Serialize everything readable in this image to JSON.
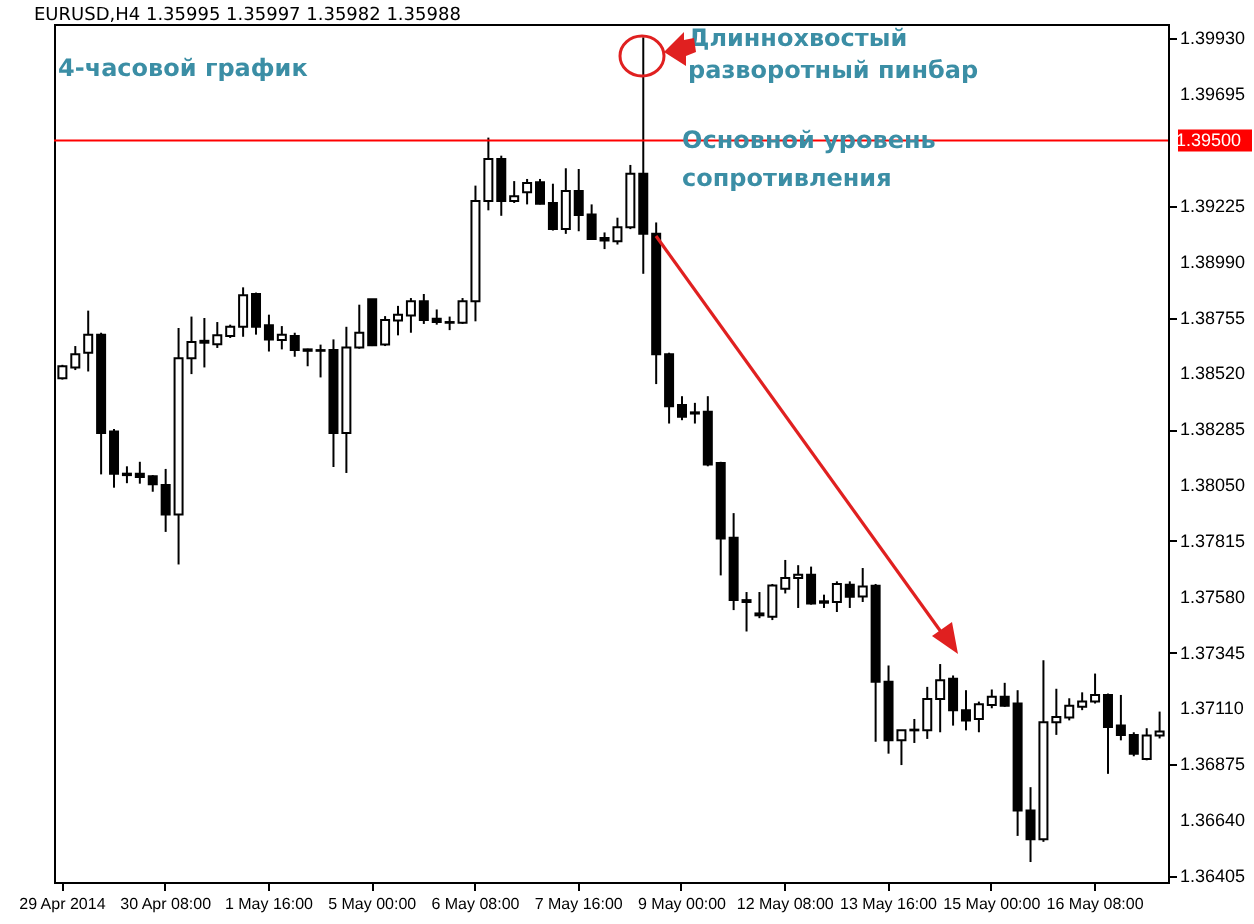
{
  "chart_data": {
    "type": "candlestick",
    "title": "EURUSD,H4  1.35995 1.35997 1.35982 1.35988",
    "subtitle": "4-часовой график",
    "annotations": [
      "Длиннохвостый разворотный пинбар",
      {
        "text": "Основной уровень сопротивления",
        "y": 1.395
      }
    ],
    "categories": [
      "29 Apr 2014",
      null,
      null,
      null,
      null,
      null,
      null,
      null,
      "30 Apr 08:00",
      null,
      null,
      null,
      null,
      null,
      null,
      null,
      "1 May 16:00",
      null,
      null,
      null,
      null,
      null,
      null,
      null,
      "5 May 00:00",
      null,
      null,
      null,
      null,
      null,
      null,
      null,
      "6 May 08:00",
      null,
      null,
      null,
      null,
      null,
      null,
      null,
      "7 May 16:00",
      null,
      null,
      null,
      null,
      null,
      null,
      null,
      "9 May 00:00",
      null,
      null,
      null,
      null,
      null,
      null,
      null,
      "12 May 08:00",
      null,
      null,
      null,
      null,
      null,
      null,
      null,
      "13 May 16:00",
      null,
      null,
      null,
      null,
      null,
      null,
      null,
      "15 May 00:00",
      null,
      null,
      null,
      null,
      null,
      null,
      null,
      "16 May 08:00",
      null,
      null,
      null,
      null,
      null
    ],
    "ohlc": [
      [
        1.385,
        1.38556,
        1.38494,
        1.3855
      ],
      [
        1.38545,
        1.38635,
        1.38534,
        1.38601
      ],
      [
        1.38607,
        1.38784,
        1.38528,
        1.38683
      ],
      [
        1.38683,
        1.38691,
        1.38095,
        1.38269
      ],
      [
        1.38275,
        1.38286,
        1.38039,
        1.38098
      ],
      [
        1.38098,
        1.38129,
        1.38058,
        1.38092
      ],
      [
        1.38098,
        1.38148,
        1.38056,
        1.38084
      ],
      [
        1.38087,
        1.38092,
        1.38022,
        1.38053
      ],
      [
        1.3805,
        1.38118,
        1.37853,
        1.37926
      ],
      [
        1.37926,
        1.38711,
        1.37716,
        1.38584
      ],
      [
        1.38584,
        1.38759,
        1.38517,
        1.38652
      ],
      [
        1.38649,
        1.38753,
        1.38545,
        1.38657
      ],
      [
        1.38643,
        1.38736,
        1.38627,
        1.3868
      ],
      [
        1.38677,
        1.38725,
        1.38669,
        1.38716
      ],
      [
        1.38716,
        1.38882,
        1.38674,
        1.38849
      ],
      [
        1.38854,
        1.3886,
        1.38683,
        1.38716
      ],
      [
        1.38722,
        1.38767,
        1.38612,
        1.38663
      ],
      [
        1.3866,
        1.38719,
        1.38621,
        1.38683
      ],
      [
        1.38677,
        1.38691,
        1.3859,
        1.38618
      ],
      [
        1.38621,
        1.38624,
        1.3855,
        1.38615
      ],
      [
        1.38618,
        1.38641,
        1.38503,
        1.38615
      ],
      [
        1.38618,
        1.38663,
        1.38126,
        1.38269
      ],
      [
        1.38269,
        1.38716,
        1.38101,
        1.38629
      ],
      [
        1.38629,
        1.38809,
        1.38624,
        1.38691
      ],
      [
        1.38832,
        1.38832,
        1.38635,
        1.38638
      ],
      [
        1.38641,
        1.38761,
        1.38635,
        1.38745
      ],
      [
        1.38742,
        1.38804,
        1.3868,
        1.38767
      ],
      [
        1.38764,
        1.38837,
        1.38691,
        1.38823
      ],
      [
        1.38823,
        1.38854,
        1.38728,
        1.38745
      ],
      [
        1.3875,
        1.38789,
        1.38725,
        1.38736
      ],
      [
        1.38736,
        1.38759,
        1.38702,
        1.38733
      ],
      [
        1.38733,
        1.38837,
        1.38728,
        1.38823
      ],
      [
        1.38823,
        1.3931,
        1.38739,
        1.39245
      ],
      [
        1.39245,
        1.39512,
        1.39206,
        1.39422
      ],
      [
        1.39422,
        1.39436,
        1.39183,
        1.39245
      ],
      [
        1.39245,
        1.39329,
        1.39237,
        1.39265
      ],
      [
        1.39282,
        1.39338,
        1.39231,
        1.39321
      ],
      [
        1.39324,
        1.39338,
        1.39231,
        1.39234
      ],
      [
        1.39237,
        1.39318,
        1.39121,
        1.39127
      ],
      [
        1.39127,
        1.39383,
        1.39107,
        1.39287
      ],
      [
        1.39287,
        1.3938,
        1.39118,
        1.39186
      ],
      [
        1.39189,
        1.39231,
        1.39082,
        1.39085
      ],
      [
        1.3909,
        1.39113,
        1.39043,
        1.39079
      ],
      [
        1.39076,
        1.39175,
        1.39062,
        1.39135
      ],
      [
        1.39135,
        1.39397,
        1.39127,
        1.3936
      ],
      [
        1.3936,
        1.39934,
        1.38939,
        1.39107
      ],
      [
        1.39107,
        1.39155,
        1.38475,
        1.38601
      ],
      [
        1.38601,
        1.38607,
        1.38309,
        1.38382
      ],
      [
        1.38387,
        1.38424,
        1.38323,
        1.38337
      ],
      [
        1.38356,
        1.38396,
        1.38309,
        1.38351
      ],
      [
        1.38359,
        1.38424,
        1.38129,
        1.38137
      ],
      [
        1.38143,
        1.38148,
        1.3767,
        1.37825
      ],
      [
        1.37828,
        1.37932,
        1.37524,
        1.37566
      ],
      [
        1.37566,
        1.376,
        1.37434,
        1.37558
      ],
      [
        1.3751,
        1.376,
        1.3749,
        1.37502
      ],
      [
        1.37496,
        1.37634,
        1.37482,
        1.37628
      ],
      [
        1.37614,
        1.37735,
        1.37594,
        1.37659
      ],
      [
        1.37659,
        1.37713,
        1.37533,
        1.37673
      ],
      [
        1.37673,
        1.37707,
        1.37547,
        1.37552
      ],
      [
        1.37561,
        1.37589,
        1.37533,
        1.37555
      ],
      [
        1.37558,
        1.37645,
        1.37516,
        1.37634
      ],
      [
        1.37631,
        1.37645,
        1.37533,
        1.3758
      ],
      [
        1.37581,
        1.37701,
        1.37558,
        1.37623
      ],
      [
        1.37626,
        1.37634,
        1.3697,
        1.37223
      ],
      [
        1.37223,
        1.37291,
        1.3692,
        1.36976
      ],
      [
        1.36976,
        1.37018,
        1.36872,
        1.37018
      ],
      [
        1.37018,
        1.37066,
        1.36965,
        1.37021
      ],
      [
        1.37018,
        1.37201,
        1.36982,
        1.3715
      ],
      [
        1.3715,
        1.37297,
        1.3701,
        1.37229
      ],
      [
        1.37235,
        1.37249,
        1.37038,
        1.37103
      ],
      [
        1.37103,
        1.37187,
        1.37018,
        1.3706
      ],
      [
        1.37066,
        1.37139,
        1.3701,
        1.37128
      ],
      [
        1.37125,
        1.3719,
        1.37111,
        1.37159
      ],
      [
        1.37159,
        1.37218,
        1.37117,
        1.37122
      ],
      [
        1.37131,
        1.37187,
        1.36574,
        1.36681
      ],
      [
        1.36681,
        1.36779,
        1.36464,
        1.3656
      ],
      [
        1.3656,
        1.37313,
        1.36549,
        1.37052
      ],
      [
        1.37052,
        1.37193,
        1.36999,
        1.37074
      ],
      [
        1.37072,
        1.37153,
        1.3706,
        1.37122
      ],
      [
        1.37117,
        1.37178,
        1.37103,
        1.37139
      ],
      [
        1.37139,
        1.37257,
        1.37131,
        1.37167
      ],
      [
        1.37167,
        1.37173,
        1.36835,
        1.37032
      ],
      [
        1.37038,
        1.37167,
        1.36976,
        1.36999
      ],
      [
        1.36999,
        1.3701,
        1.36909,
        1.3692
      ],
      [
        1.36897,
        1.37027,
        1.36892,
        1.36996
      ],
      [
        1.36996,
        1.37097,
        1.36984,
        1.37013
      ]
    ],
    "ylim": [
      1.3638,
      1.3999
    ],
    "yticks": [
      1.36405,
      {
        "value": 1.3664,
        "label": "1.36640"
      },
      1.36875,
      {
        "value": 1.3711,
        "label": "1.37110"
      },
      1.37345,
      {
        "value": 1.3758,
        "label": "1.37580"
      },
      1.37815,
      {
        "value": 1.3805,
        "label": "1.38050"
      },
      1.38285,
      {
        "value": 1.3852,
        "label": "1.38520"
      },
      1.38755,
      {
        "value": 1.3899,
        "label": "1.38990"
      },
      1.39225,
      1.39695,
      {
        "value": 1.3993,
        "label": "1.39930"
      }
    ],
    "ref_lines": [
      {
        "axis": "y",
        "value": 1.395,
        "label": "1.39500",
        "color": "#ff0000"
      }
    ]
  }
}
